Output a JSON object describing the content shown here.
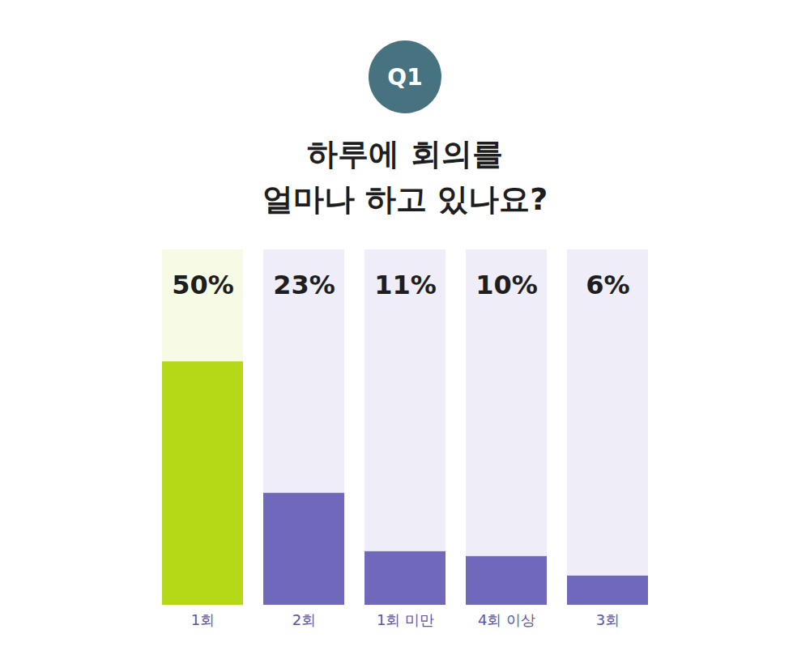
{
  "chart_data": {
    "type": "bar",
    "subtitle": "Q1",
    "title": "하루에 회의를\n얼마나 하고 있나요?",
    "categories": [
      "1회",
      "2회",
      "1회 미만",
      "4회 이상",
      "3회"
    ],
    "values": [
      50,
      23,
      11,
      10,
      6
    ],
    "value_labels": [
      "50%",
      "23%",
      "11%",
      "10%",
      "6%"
    ],
    "colors": [
      "#b5d916",
      "#7068bb",
      "#7068bb",
      "#7068bb",
      "#7068bb"
    ],
    "ylim": [
      0,
      73
    ],
    "data_labels": true,
    "tick_labels": "x",
    "grid": false
  }
}
